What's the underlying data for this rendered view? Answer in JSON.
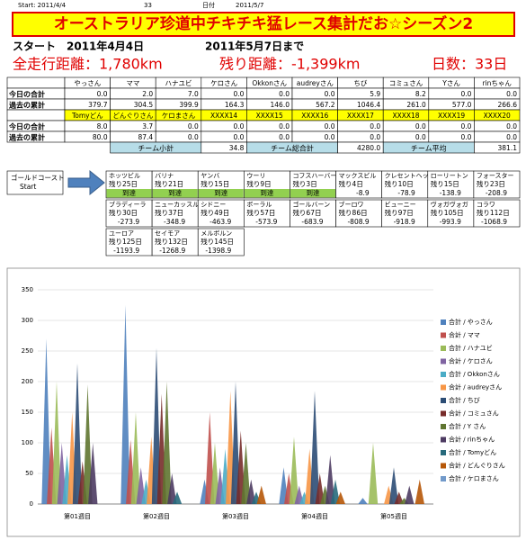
{
  "header": {
    "start_label": "Start: 2011/4/4",
    "days": "33",
    "date_label": "日付",
    "date": "2011/5/7",
    "title": "オーストラリア珍道中チキチキ猛レース集計だお☆シーズン2",
    "start_line": "スタート　2011年4月4日",
    "until": "2011年5月7日まで",
    "total_distance": "全走行距離：1,780km",
    "remaining": "残り距離：-1,399km",
    "days_count": "日数：33日"
  },
  "table": {
    "row_labels": [
      "今日の合計",
      "過去の累計"
    ],
    "groups": [
      {
        "names": [
          "やっさん",
          "ママ",
          "ハナユビ",
          "ケロさん",
          "Okkonさん",
          "audreyさん",
          "ちび",
          "コミュさん",
          "Yさん",
          "rinちゃん"
        ],
        "today": [
          "0.0",
          "2.0",
          "7.0",
          "0.0",
          "0.0",
          "0.0",
          "5.9",
          "8.2",
          "0.0",
          "0.0"
        ],
        "cumulative": [
          "379.7",
          "304.5",
          "399.9",
          "164.3",
          "146.0",
          "567.2",
          "1046.4",
          "261.0",
          "577.0",
          "266.6"
        ]
      },
      {
        "names": [
          "Tomyどん",
          "どんぐりさん",
          "ケロまさん",
          "XXXX14",
          "XXXX15",
          "XXXX16",
          "XXXX17",
          "XXXX18",
          "XXXX19",
          "XXXX20"
        ],
        "today": [
          "8.0",
          "3.7",
          "0.0",
          "0.0",
          "0.0",
          "0.0",
          "0.0",
          "0.0",
          "0.0",
          "0.0"
        ],
        "cumulative": [
          "80.0",
          "87.4",
          "0.0",
          "0.0",
          "0.0",
          "0.0",
          "0.0",
          "0.0",
          "0.0",
          "0.0"
        ]
      }
    ],
    "summary": [
      {
        "label": "チーム小計",
        "value": "34.8"
      },
      {
        "label": "チーム総合計",
        "value": "4280.0"
      },
      {
        "label": "チーム平均",
        "value": "381.1"
      }
    ]
  },
  "course": {
    "start": [
      "ゴールドコースト",
      "Start"
    ],
    "stops": [
      {
        "name": "ホッツビル",
        "days": "残り25日",
        "status": "到達"
      },
      {
        "name": "バリナ",
        "days": "残り21日",
        "status": "到達"
      },
      {
        "name": "ヤンバ",
        "days": "残り15日",
        "status": "到達"
      },
      {
        "name": "ウーリ",
        "days": "残り9日",
        "status": "到達"
      },
      {
        "name": "コフスハーバー",
        "days": "残り3日",
        "status": "到達"
      },
      {
        "name": "マックスビル",
        "days": "残り4日",
        "status": "-8.9"
      },
      {
        "name": "クレセントヘッド",
        "days": "残り10日",
        "status": "-78.9"
      },
      {
        "name": "ローリートン",
        "days": "残り15日",
        "status": "-138.9"
      },
      {
        "name": "フォースター",
        "days": "残り23日",
        "status": "-208.9"
      },
      {
        "name": "ブラディーラ",
        "days": "残り30日",
        "status": "-273.9"
      },
      {
        "name": "ニューカッスル",
        "days": "残り37日",
        "status": "-348.9"
      },
      {
        "name": "シドニー",
        "days": "残り49日",
        "status": "-463.9"
      },
      {
        "name": "ボーラル",
        "days": "残り57日",
        "status": "-573.9"
      },
      {
        "name": "ゴールバーン",
        "days": "残り67日",
        "status": "-683.9"
      },
      {
        "name": "ブーロワ",
        "days": "残り86日",
        "status": "-808.9"
      },
      {
        "name": "ビューニー",
        "days": "残り97日",
        "status": "-918.9"
      },
      {
        "name": "ヴォガヴォガ",
        "days": "残り105日",
        "status": "-993.9"
      },
      {
        "name": "コラワ",
        "days": "残り112日",
        "status": "-1068.9"
      },
      {
        "name": "ユーロア",
        "days": "残り125日",
        "status": "-1193.9"
      },
      {
        "name": "セイモア",
        "days": "残り132日",
        "status": "-1268.9"
      },
      {
        "name": "メルボルン",
        "days": "残り145日",
        "status": "-1398.9"
      }
    ]
  },
  "chart_data": {
    "type": "bar",
    "categories": [
      "第01週目",
      "第02週目",
      "第03週目",
      "第04週目",
      "第05週目"
    ],
    "ylim": [
      0,
      350
    ],
    "yticks": [
      0,
      50,
      100,
      150,
      200,
      250,
      300,
      350
    ],
    "grid": true,
    "series": [
      {
        "name": "合計 / やっさん",
        "color": "#4f81bd",
        "values": [
          270,
          325,
          40,
          60,
          10
        ]
      },
      {
        "name": "合計 / ママ",
        "color": "#c0504d",
        "values": [
          125,
          105,
          150,
          50,
          0
        ]
      },
      {
        "name": "合計 / ハナユビ",
        "color": "#9bbb59",
        "values": [
          200,
          150,
          100,
          110,
          100
        ]
      },
      {
        "name": "合計 / ケロさん",
        "color": "#8064a2",
        "values": [
          100,
          60,
          60,
          30,
          0
        ]
      },
      {
        "name": "合計 / Okkonさん",
        "color": "#4bacc6",
        "values": [
          80,
          40,
          90,
          20,
          0
        ]
      },
      {
        "name": "合計 / audreyさん",
        "color": "#f79646",
        "values": [
          150,
          110,
          185,
          90,
          30
        ]
      },
      {
        "name": "合計 / ちび",
        "color": "#2c4d75",
        "values": [
          230,
          255,
          200,
          185,
          60
        ]
      },
      {
        "name": "合計 / コミュさん",
        "color": "#772c2a",
        "values": [
          70,
          180,
          120,
          50,
          20
        ]
      },
      {
        "name": "合計 / Y さん",
        "color": "#5f7530",
        "values": [
          195,
          200,
          100,
          30,
          10
        ]
      },
      {
        "name": "合計 / rinちゃん",
        "color": "#4d3b62",
        "values": [
          100,
          50,
          40,
          80,
          30
        ]
      },
      {
        "name": "合計 / Tomyどん",
        "color": "#276a7c",
        "values": [
          0,
          20,
          20,
          40,
          0
        ]
      },
      {
        "name": "合計 / どんぐりさん",
        "color": "#b65708",
        "values": [
          0,
          0,
          30,
          20,
          40
        ]
      },
      {
        "name": "合計 / ケロまさん",
        "color": "#729aca",
        "values": [
          0,
          0,
          0,
          0,
          0
        ]
      }
    ]
  }
}
